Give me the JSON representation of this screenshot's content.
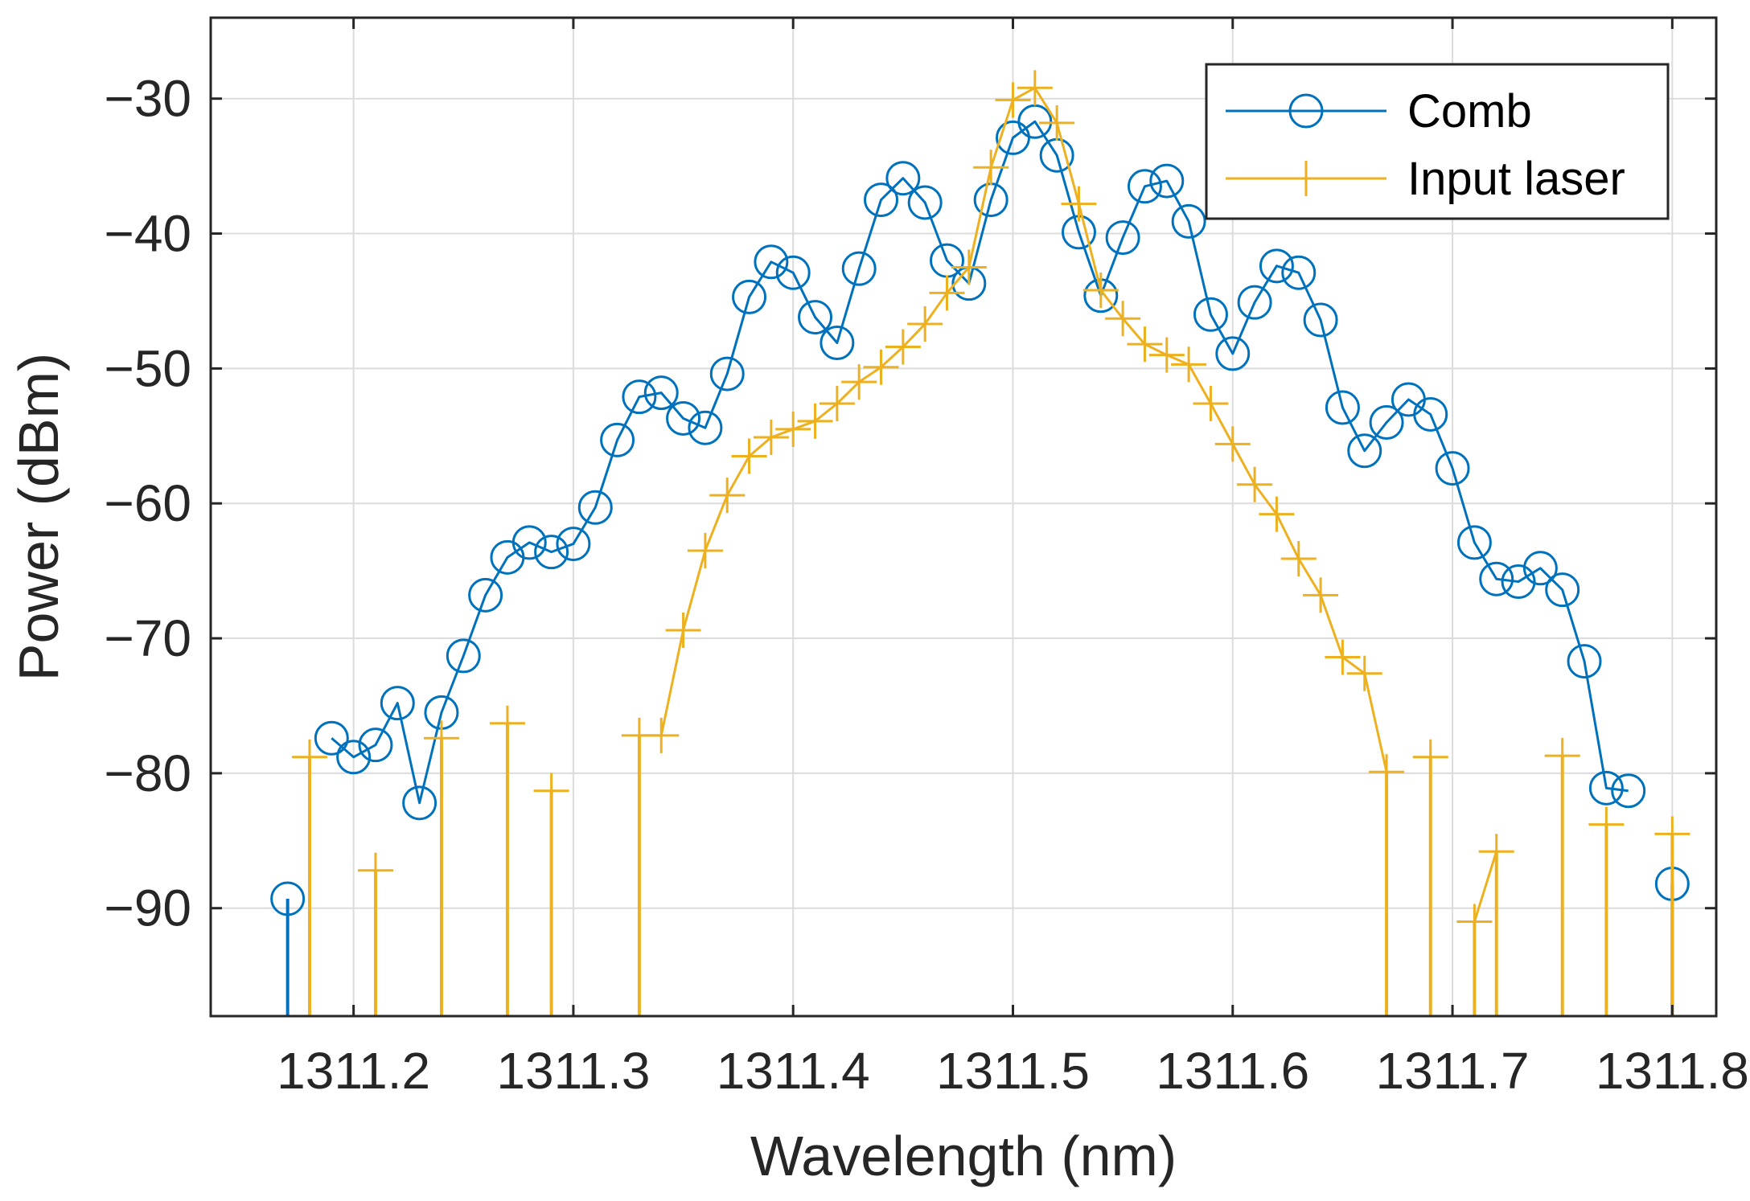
{
  "chart_data": {
    "type": "line",
    "title": "",
    "xlabel": "Wavelength (nm)",
    "ylabel": "Power (dBm)",
    "xlim": [
      1311.135,
      1311.82
    ],
    "ylim": [
      -98,
      -24
    ],
    "xticks": [
      1311.2,
      1311.3,
      1311.4,
      1311.5,
      1311.6,
      1311.7,
      1311.8
    ],
    "xtick_labels": [
      "1311.2",
      "1311.3",
      "1311.4",
      "1311.5",
      "1311.6",
      "1311.7",
      "1311.8"
    ],
    "yticks": [
      -90,
      -80,
      -70,
      -60,
      -50,
      -40,
      -30
    ],
    "ytick_labels": [
      "−90",
      "−80",
      "−70",
      "−60",
      "−50",
      "−40",
      "−30"
    ],
    "grid": true,
    "legend_position": "top-right",
    "series": [
      {
        "name": "Comb",
        "color": "#0072BD",
        "marker": "circle",
        "x": [
          1311.17,
          1311.18,
          1311.19,
          1311.2,
          1311.21,
          1311.22,
          1311.23,
          1311.24,
          1311.25,
          1311.26,
          1311.27,
          1311.28,
          1311.29,
          1311.3,
          1311.31,
          1311.32,
          1311.33,
          1311.34,
          1311.35,
          1311.36,
          1311.37,
          1311.38,
          1311.39,
          1311.4,
          1311.41,
          1311.42,
          1311.43,
          1311.44,
          1311.45,
          1311.46,
          1311.47,
          1311.48,
          1311.49,
          1311.5,
          1311.51,
          1311.52,
          1311.53,
          1311.54,
          1311.55,
          1311.56,
          1311.57,
          1311.58,
          1311.59,
          1311.6,
          1311.61,
          1311.62,
          1311.63,
          1311.64,
          1311.65,
          1311.66,
          1311.67,
          1311.68,
          1311.69,
          1311.7,
          1311.71,
          1311.72,
          1311.73,
          1311.74,
          1311.75,
          1311.76,
          1311.77,
          1311.78,
          1311.79,
          1311.8
        ],
        "y": [
          -89.3,
          null,
          -77.4,
          -78.8,
          -77.9,
          -74.8,
          -82.2,
          -75.5,
          -71.3,
          -66.8,
          -64.0,
          -62.9,
          -63.6,
          -63.0,
          -60.3,
          -55.3,
          -52.1,
          -51.8,
          -53.7,
          -54.4,
          -50.4,
          -44.7,
          -42.1,
          -42.9,
          -46.2,
          -48.1,
          -42.6,
          -37.5,
          -35.9,
          -37.7,
          -42.0,
          -43.7,
          -37.5,
          -32.9,
          -31.7,
          -34.2,
          -39.9,
          -44.6,
          -40.3,
          -36.5,
          -36.1,
          -39.1,
          -46.0,
          -48.9,
          -45.1,
          -42.4,
          -42.9,
          -46.4,
          -52.9,
          -56.1,
          -54.0,
          -52.3,
          -53.4,
          -57.4,
          -62.9,
          -65.6,
          -65.8,
          -64.8,
          -66.4,
          -71.7,
          -81.1,
          -81.3,
          null,
          -88.2
        ],
        "drops": [
          1311.17,
          1311.18,
          1311.79,
          1311.8
        ]
      },
      {
        "name": "Input laser",
        "color": "#EDB120",
        "marker": "plus",
        "x": [
          1311.18,
          1311.19,
          1311.2,
          1311.21,
          1311.22,
          1311.23,
          1311.24,
          1311.25,
          1311.26,
          1311.27,
          1311.28,
          1311.29,
          1311.3,
          1311.31,
          1311.32,
          1311.33,
          1311.34,
          1311.35,
          1311.36,
          1311.37,
          1311.38,
          1311.39,
          1311.4,
          1311.41,
          1311.42,
          1311.43,
          1311.44,
          1311.45,
          1311.46,
          1311.47,
          1311.48,
          1311.49,
          1311.5,
          1311.51,
          1311.52,
          1311.53,
          1311.54,
          1311.55,
          1311.56,
          1311.57,
          1311.58,
          1311.59,
          1311.6,
          1311.61,
          1311.62,
          1311.63,
          1311.64,
          1311.65,
          1311.66,
          1311.67,
          1311.68,
          1311.69,
          1311.7,
          1311.71,
          1311.72,
          1311.73,
          1311.74,
          1311.75,
          1311.76,
          1311.77,
          1311.78,
          1311.79,
          1311.8
        ],
        "y": [
          -78.8,
          null,
          null,
          -87.2,
          null,
          null,
          -77.4,
          null,
          null,
          -76.3,
          null,
          -81.3,
          null,
          null,
          null,
          -77.2,
          -77.2,
          -69.4,
          -63.5,
          -59.4,
          -56.5,
          -55.1,
          -54.5,
          -53.9,
          -52.6,
          -51.0,
          -49.9,
          -48.4,
          -46.7,
          -44.4,
          -42.5,
          -35.1,
          -30.1,
          -29.2,
          -31.8,
          -37.8,
          -44.2,
          -46.3,
          -48.2,
          -49.0,
          -49.7,
          -52.6,
          -55.6,
          -58.6,
          -60.8,
          -64.1,
          -66.8,
          -71.4,
          -72.6,
          -79.9,
          null,
          -78.8,
          null,
          -91.0,
          -85.8,
          null,
          null,
          -78.7,
          null,
          -83.8,
          null,
          null,
          -84.5
        ],
        "drops": [
          1311.18,
          1311.21,
          1311.24,
          1311.27,
          1311.29,
          1311.33,
          1311.67,
          1311.69,
          1311.71,
          1311.72,
          1311.75,
          1311.77,
          1311.8
        ]
      }
    ]
  }
}
